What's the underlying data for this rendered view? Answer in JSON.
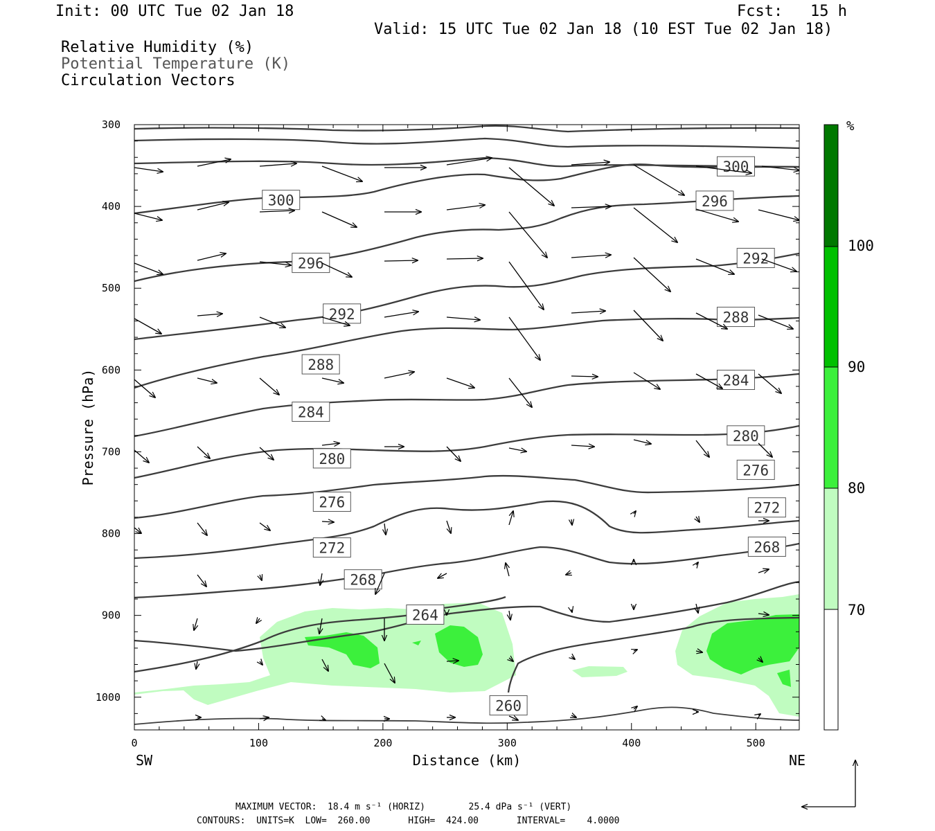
{
  "header": {
    "init": "Init: 00 UTC Tue 02 Jan 18",
    "fcst": "Fcst:   15 h",
    "valid": "Valid: 15 UTC Tue 02 Jan 18 (10 EST Tue 02 Jan 18)"
  },
  "legend": {
    "items": [
      "Relative Humidity (%)",
      "Potential Temperature (K)",
      "Circulation Vectors"
    ]
  },
  "footer": {
    "line1": "MAXIMUM VECTOR:  18.4 m s⁻¹ (HORIZ)        25.4 dPa s⁻¹ (VERT)",
    "line2": "CONTOURS:  UNITS=K  LOW=  260.00       HIGH=  424.00       INTERVAL=    4.0000"
  },
  "colors": {
    "rh_70_80": "#c0fcc0",
    "rh_80_90": "#3cf03c",
    "rh_90_100": "#00c000",
    "rh_100": "#007800",
    "contour": "#3c3c3c"
  },
  "chart_data": {
    "type": "contour-cross-section",
    "xlabel": "Distance (km)",
    "ylabel": "Pressure (hPa)",
    "xlim": [
      0,
      535
    ],
    "ylim": [
      1040,
      300
    ],
    "x_ticks": [
      0,
      100,
      200,
      300,
      400,
      500
    ],
    "y_ticks": [
      300,
      400,
      500,
      600,
      700,
      800,
      900,
      1000
    ],
    "x_end_labels": {
      "left": "SW",
      "right": "NE"
    },
    "colorbar": {
      "unit": "%",
      "levels": [
        70,
        80,
        90,
        100
      ]
    },
    "contour_labels": [
      {
        "value": "300",
        "x": 118,
        "p": 392
      },
      {
        "value": "296",
        "x": 142,
        "p": 469
      },
      {
        "value": "292",
        "x": 167,
        "p": 531
      },
      {
        "value": "288",
        "x": 150,
        "p": 593
      },
      {
        "value": "284",
        "x": 142,
        "p": 651
      },
      {
        "value": "280",
        "x": 159,
        "p": 708
      },
      {
        "value": "276",
        "x": 159,
        "p": 761
      },
      {
        "value": "272",
        "x": 159,
        "p": 817
      },
      {
        "value": "268",
        "x": 184,
        "p": 856
      },
      {
        "value": "264",
        "x": 234,
        "p": 899
      },
      {
        "value": "260",
        "x": 301,
        "p": 1010
      },
      {
        "value": "300",
        "x": 484,
        "p": 351
      },
      {
        "value": "296",
        "x": 467,
        "p": 393
      },
      {
        "value": "292",
        "x": 500,
        "p": 463
      },
      {
        "value": "288",
        "x": 484,
        "p": 535
      },
      {
        "value": "284",
        "x": 484,
        "p": 612
      },
      {
        "value": "280",
        "x": 492,
        "p": 680
      },
      {
        "value": "276",
        "x": 500,
        "p": 722
      },
      {
        "value": "272",
        "x": 509,
        "p": 768
      },
      {
        "value": "268",
        "x": 509,
        "p": 816
      }
    ]
  }
}
